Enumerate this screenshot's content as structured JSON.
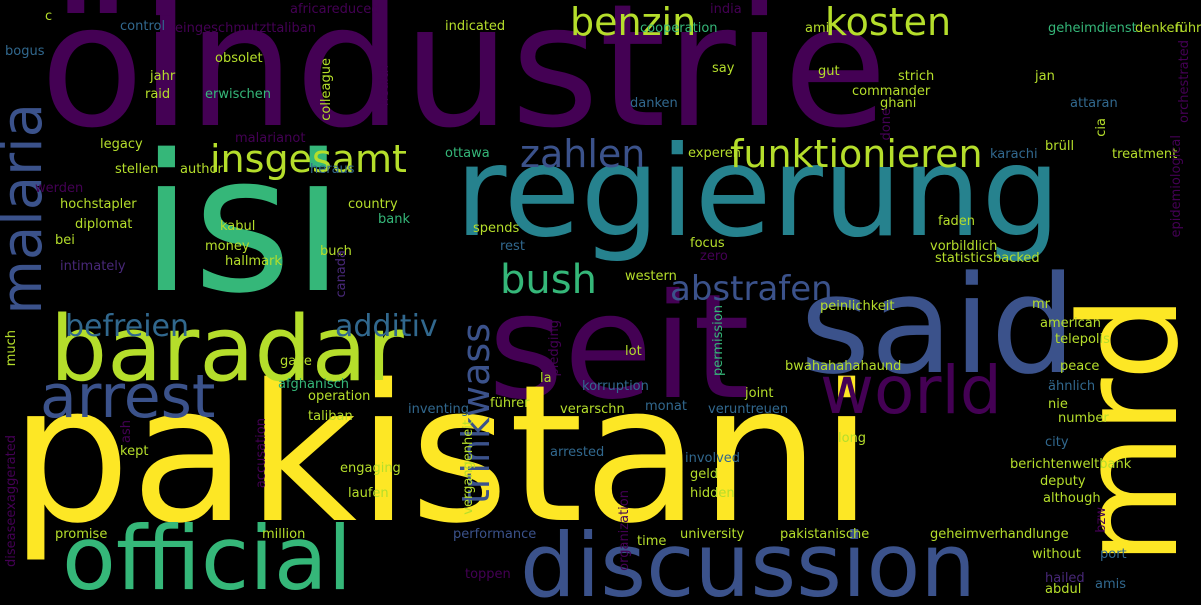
{
  "palette": {
    "background": "#000000",
    "yellow": "#fde725",
    "lime": "#b5de2b",
    "green": "#35b779",
    "teal": "#26828e",
    "tealblue": "#21918c",
    "blue": "#3b528b",
    "indigo": "#31688e",
    "purple": "#440154",
    "violet": "#482878"
  },
  "words": [
    {
      "text": "öl",
      "c": "purple"
    },
    {
      "text": "industrie",
      "c": "purple"
    },
    {
      "text": "isi",
      "c": "green"
    },
    {
      "text": "regierung",
      "c": "teal"
    },
    {
      "text": "seit",
      "c": "purple"
    },
    {
      "text": "said",
      "c": "blue"
    },
    {
      "text": "pakistani",
      "c": "yellow"
    },
    {
      "text": "mrd",
      "c": "yellow"
    },
    {
      "text": "baradar",
      "c": "lime"
    },
    {
      "text": "official",
      "c": "green"
    },
    {
      "text": "discussion",
      "c": "blue"
    },
    {
      "text": "arrest",
      "c": "blue"
    },
    {
      "text": "malaria",
      "c": "blue"
    },
    {
      "text": "world",
      "c": "purple"
    },
    {
      "text": "benzin",
      "c": "lime"
    },
    {
      "text": "kosten",
      "c": "lime"
    },
    {
      "text": "insgesamt",
      "c": "lime"
    },
    {
      "text": "funktionieren",
      "c": "lime"
    },
    {
      "text": "zahlen",
      "c": "blue"
    },
    {
      "text": "bush",
      "c": "green"
    },
    {
      "text": "abstrafen",
      "c": "blue"
    },
    {
      "text": "befreien",
      "c": "indigo"
    },
    {
      "text": "additiv",
      "c": "indigo"
    },
    {
      "text": "trinkwass",
      "c": "blue"
    },
    {
      "text": "africareduced",
      "c": "purple"
    },
    {
      "text": "india",
      "c": "purple"
    },
    {
      "text": "reingeschmutzttaliban",
      "c": "purple"
    },
    {
      "text": "indicated",
      "c": "lime"
    },
    {
      "text": "cooperation",
      "c": "green"
    },
    {
      "text": "amir",
      "c": "lime"
    },
    {
      "text": "geheimdienst",
      "c": "green"
    },
    {
      "text": "denken",
      "c": "lime"
    },
    {
      "text": "führen",
      "c": "lime"
    },
    {
      "text": "c",
      "c": "lime"
    },
    {
      "text": "control",
      "c": "indigo"
    },
    {
      "text": "bogus",
      "c": "indigo"
    },
    {
      "text": "obsolet",
      "c": "lime"
    },
    {
      "text": "jahr",
      "c": "lime"
    },
    {
      "text": "raid",
      "c": "lime"
    },
    {
      "text": "erwischen",
      "c": "green"
    },
    {
      "text": "colleague",
      "c": "lime"
    },
    {
      "text": "health",
      "c": "purple"
    },
    {
      "text": "say",
      "c": "lime"
    },
    {
      "text": "gut",
      "c": "lime"
    },
    {
      "text": "strich",
      "c": "lime"
    },
    {
      "text": "jan",
      "c": "lime"
    },
    {
      "text": "commander",
      "c": "lime"
    },
    {
      "text": "ghani",
      "c": "lime"
    },
    {
      "text": "danken",
      "c": "indigo"
    },
    {
      "text": "attaran",
      "c": "indigo"
    },
    {
      "text": "orchestrated",
      "c": "purple"
    },
    {
      "text": "malarianot",
      "c": "purple"
    },
    {
      "text": "done",
      "c": "purple"
    },
    {
      "text": "legacy",
      "c": "lime"
    },
    {
      "text": "ottawa",
      "c": "green"
    },
    {
      "text": "experen",
      "c": "lime"
    },
    {
      "text": "karachi",
      "c": "indigo"
    },
    {
      "text": "brüll",
      "c": "lime"
    },
    {
      "text": "cia",
      "c": "lime"
    },
    {
      "text": "treatment",
      "c": "lime"
    },
    {
      "text": "stellen",
      "c": "lime"
    },
    {
      "text": "author",
      "c": "lime"
    },
    {
      "text": "heraus",
      "c": "indigo"
    },
    {
      "text": "epidemiological",
      "c": "purple"
    },
    {
      "text": "werden",
      "c": "purple"
    },
    {
      "text": "hochstapler",
      "c": "lime"
    },
    {
      "text": "country",
      "c": "lime"
    },
    {
      "text": "kabul",
      "c": "lime"
    },
    {
      "text": "bank",
      "c": "green"
    },
    {
      "text": "faden",
      "c": "lime"
    },
    {
      "text": "diplomat",
      "c": "lime"
    },
    {
      "text": "spends",
      "c": "lime"
    },
    {
      "text": "bei",
      "c": "lime"
    },
    {
      "text": "buch",
      "c": "lime"
    },
    {
      "text": "money",
      "c": "lime"
    },
    {
      "text": "focus",
      "c": "lime"
    },
    {
      "text": "rest",
      "c": "indigo"
    },
    {
      "text": "vorbildlich",
      "c": "lime"
    },
    {
      "text": "canada",
      "c": "violet"
    },
    {
      "text": "hallmark",
      "c": "lime"
    },
    {
      "text": "zero",
      "c": "purple"
    },
    {
      "text": "statisticsbacked",
      "c": "lime"
    },
    {
      "text": "intimately",
      "c": "violet"
    },
    {
      "text": "western",
      "c": "lime"
    },
    {
      "text": "mr",
      "c": "lime"
    },
    {
      "text": "peinlichkeit",
      "c": "lime"
    },
    {
      "text": "american",
      "c": "lime"
    },
    {
      "text": "telepolis",
      "c": "lime"
    },
    {
      "text": "much",
      "c": "lime"
    },
    {
      "text": "pledging",
      "c": "purple"
    },
    {
      "text": "permission",
      "c": "green"
    },
    {
      "text": "lot",
      "c": "lime"
    },
    {
      "text": "gave",
      "c": "lime"
    },
    {
      "text": "bwahahahahaund",
      "c": "lime"
    },
    {
      "text": "peace",
      "c": "lime"
    },
    {
      "text": "afghanisch",
      "c": "green"
    },
    {
      "text": "la",
      "c": "lime"
    },
    {
      "text": "korruption",
      "c": "indigo"
    },
    {
      "text": "ähnlich",
      "c": "indigo"
    },
    {
      "text": "operation",
      "c": "lime"
    },
    {
      "text": "joint",
      "c": "lime"
    },
    {
      "text": "taliban",
      "c": "lime"
    },
    {
      "text": "führer",
      "c": "lime"
    },
    {
      "text": "verarschn",
      "c": "lime"
    },
    {
      "text": "nie",
      "c": "lime"
    },
    {
      "text": "inventing",
      "c": "indigo"
    },
    {
      "text": "monat",
      "c": "indigo"
    },
    {
      "text": "veruntreuen",
      "c": "indigo"
    },
    {
      "text": "ash",
      "c": "purple"
    },
    {
      "text": "accusation",
      "c": "purple"
    },
    {
      "text": "long",
      "c": "lime"
    },
    {
      "text": "number",
      "c": "lime"
    },
    {
      "text": "vergangenheit",
      "c": "lime"
    },
    {
      "text": "city",
      "c": "indigo"
    },
    {
      "text": "kept",
      "c": "lime"
    },
    {
      "text": "arrested",
      "c": "indigo"
    },
    {
      "text": "involved",
      "c": "indigo"
    },
    {
      "text": "berichtenweltbank",
      "c": "lime"
    },
    {
      "text": "engaging",
      "c": "lime"
    },
    {
      "text": "geld",
      "c": "lime"
    },
    {
      "text": "deputy",
      "c": "lime"
    },
    {
      "text": "diseaseexaggerated",
      "c": "purple"
    },
    {
      "text": "laufen",
      "c": "lime"
    },
    {
      "text": "hidden",
      "c": "lime"
    },
    {
      "text": "although",
      "c": "lime"
    },
    {
      "text": "organization",
      "c": "purple"
    },
    {
      "text": "bzw",
      "c": "purple"
    },
    {
      "text": "promise",
      "c": "lime"
    },
    {
      "text": "million",
      "c": "lime"
    },
    {
      "text": "performance",
      "c": "blue"
    },
    {
      "text": "time",
      "c": "lime"
    },
    {
      "text": "university",
      "c": "lime"
    },
    {
      "text": "pakistanische",
      "c": "lime"
    },
    {
      "text": "geheimverhandlunge",
      "c": "lime"
    },
    {
      "text": "without",
      "c": "lime"
    },
    {
      "text": "port",
      "c": "indigo"
    },
    {
      "text": "toppen",
      "c": "purple"
    },
    {
      "text": "hailed",
      "c": "violet"
    },
    {
      "text": "amis",
      "c": "indigo"
    },
    {
      "text": "abdul",
      "c": "lime"
    }
  ]
}
